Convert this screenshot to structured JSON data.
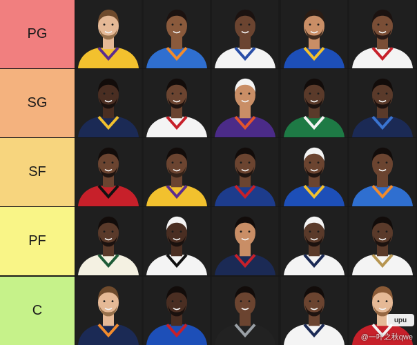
{
  "tiers": [
    {
      "label": "PG",
      "color": "#f17f7f",
      "players": [
        {
          "skin": "#e5b996",
          "hair": "#6e4a2c",
          "jersey": "#f2c12e",
          "trim": "#5b2d8e",
          "beard": "#8a6440"
        },
        {
          "skin": "#8a5a3c",
          "hair": "#1b1210",
          "jersey": "#2f6fd0",
          "trim": "#f28b2c",
          "beard": null
        },
        {
          "skin": "#6b4430",
          "hair": "#1b1210",
          "jersey": "#f4f4f4",
          "trim": "#2a4fa8",
          "beard": null
        },
        {
          "skin": "#c98e66",
          "hair": "#2a1c14",
          "jersey": "#1d4fb8",
          "trim": "#f2c12e",
          "beard": "#2a1c14"
        },
        {
          "skin": "#7a4e36",
          "hair": "#1b1210",
          "jersey": "#f4f4f4",
          "trim": "#c7202a",
          "beard": "#1b1210"
        }
      ]
    },
    {
      "label": "SG",
      "color": "#f4b27e",
      "players": [
        {
          "skin": "#4a2e22",
          "hair": "#120c0a",
          "jersey": "#1b2a55",
          "trim": "#f2c12e",
          "beard": "#120c0a"
        },
        {
          "skin": "#6b4430",
          "hair": "#120c0a",
          "jersey": "#f4f4f4",
          "trim": "#c7202a",
          "beard": "#120c0a"
        },
        {
          "skin": "#c98e66",
          "hair": "#f4f4f4",
          "jersey": "#4b2b88",
          "trim": "#e3542d",
          "beard": null
        },
        {
          "skin": "#5a3a2a",
          "hair": "#120c0a",
          "jersey": "#1e7a45",
          "trim": "#f4f4f4",
          "beard": "#120c0a"
        },
        {
          "skin": "#5a3a2a",
          "hair": "#120c0a",
          "jersey": "#1b2a55",
          "trim": "#3a74d1",
          "beard": "#120c0a"
        }
      ]
    },
    {
      "label": "SF",
      "color": "#f7d57e",
      "players": [
        {
          "skin": "#6b4430",
          "hair": "#120c0a",
          "jersey": "#c7202a",
          "trim": "#111111",
          "beard": "#120c0a"
        },
        {
          "skin": "#6b4430",
          "hair": "#120c0a",
          "jersey": "#f2c12e",
          "trim": "#5b2d8e",
          "beard": "#2a1c14"
        },
        {
          "skin": "#6b4430",
          "hair": "#120c0a",
          "jersey": "#1d3c8c",
          "trim": "#c7202a",
          "beard": "#120c0a"
        },
        {
          "skin": "#6b4430",
          "hair": "#f4f4f4",
          "jersey": "#1d4fb8",
          "trim": "#f2c12e",
          "beard": "#120c0a"
        },
        {
          "skin": "#6b4430",
          "hair": "#120c0a",
          "jersey": "#2f6fd0",
          "trim": "#f28b2c",
          "beard": null
        }
      ]
    },
    {
      "label": "PF",
      "color": "#f9f587",
      "players": [
        {
          "skin": "#5a3a2a",
          "hair": "#120c0a",
          "jersey": "#f4f1e2",
          "trim": "#1e5b37",
          "beard": "#120c0a"
        },
        {
          "skin": "#4a2e22",
          "hair": "#f4f4f4",
          "jersey": "#f4f4f4",
          "trim": "#111111",
          "beard": "#120c0a"
        },
        {
          "skin": "#c98e66",
          "hair": "#120c0a",
          "jersey": "#1b2a55",
          "trim": "#c7202a",
          "beard": null
        },
        {
          "skin": "#5a3a2a",
          "hair": "#f4f4f4",
          "jersey": "#f4f4f4",
          "trim": "#1b2a55",
          "beard": "#120c0a"
        },
        {
          "skin": "#5a3a2a",
          "hair": "#120c0a",
          "jersey": "#f4f4f4",
          "trim": "#b69550",
          "beard": "#120c0a"
        }
      ]
    },
    {
      "label": "C",
      "color": "#c6f28a",
      "players": [
        {
          "skin": "#e5b996",
          "hair": "#6e4a2c",
          "jersey": "#1b2a55",
          "trim": "#f28b2c",
          "beard": "#8a6440"
        },
        {
          "skin": "#4a2e22",
          "hair": "#120c0a",
          "jersey": "#1d4fb8",
          "trim": "#c7202a",
          "beard": "#120c0a"
        },
        {
          "skin": "#6b4430",
          "hair": "#120c0a",
          "jersey": "#222222",
          "trim": "#9aa0a6",
          "beard": null
        },
        {
          "skin": "#6b4430",
          "hair": "#120c0a",
          "jersey": "#f4f4f4",
          "trim": "#1b2a55",
          "beard": "#120c0a"
        },
        {
          "skin": "#e5b996",
          "hair": "#8a5a36",
          "jersey": "#c7202a",
          "trim": "#f4f4f4",
          "beard": "#8a5a36"
        }
      ]
    }
  ],
  "watermark": {
    "badge": "upu",
    "text": "@一叶之秋qwe"
  }
}
